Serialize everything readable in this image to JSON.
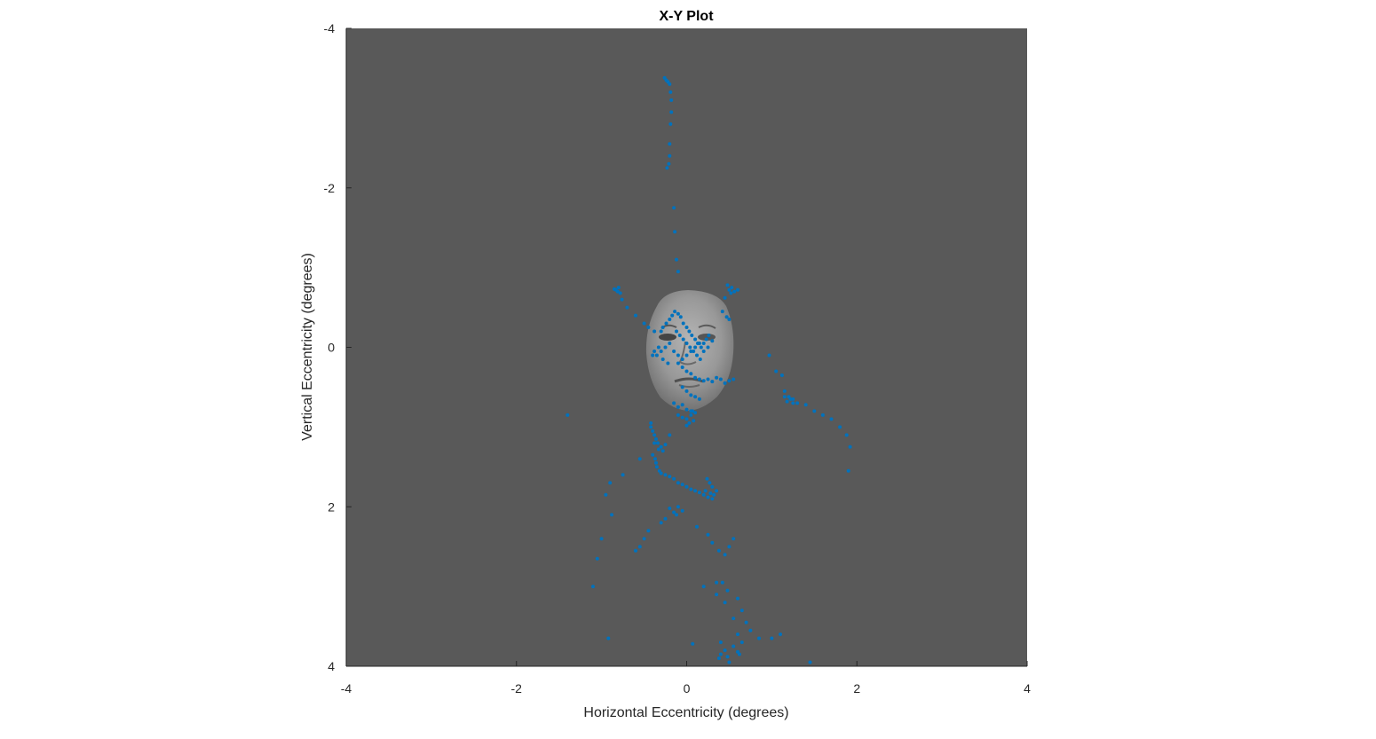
{
  "chart_data": {
    "type": "scatter",
    "title": "X-Y Plot",
    "xlabel": "Horizontal Eccentricity (degrees)",
    "ylabel": "Vertical Eccentricity (degrees)",
    "xlim": [
      -4,
      4
    ],
    "ylim": [
      -4,
      4
    ],
    "y_axis_reversed": true,
    "xticks": [
      -4,
      -2,
      0,
      2,
      4
    ],
    "yticks": [
      -4,
      -2,
      0,
      2,
      4
    ],
    "xtick_labels": [
      "-4",
      "-2",
      "0",
      "2",
      "4"
    ],
    "ytick_labels": [
      "-4",
      "-2",
      "0",
      "2",
      "4"
    ],
    "grid": false,
    "background_color": "#595959",
    "marker_color": "#0072BD",
    "background_image": "face-image",
    "series": [
      {
        "x": [
          -0.26,
          -0.24,
          -0.22,
          -0.2,
          -0.19,
          -0.18,
          -0.18,
          -0.19,
          -0.2,
          -0.2,
          -0.21,
          -0.23,
          -0.15,
          -0.14,
          -0.12,
          -0.1,
          -0.83,
          -0.8,
          -0.78,
          -0.81,
          -0.85,
          -0.76,
          0.48,
          0.5,
          0.53,
          0.56,
          0.52,
          0.6,
          0.45,
          -0.7,
          -0.6,
          -0.5,
          -0.45,
          -0.38,
          0.42,
          0.47,
          0.5,
          -0.3,
          -0.28,
          -0.24,
          -0.2,
          -0.17,
          -0.14,
          -0.1,
          -0.07,
          -0.04,
          0.0,
          0.03,
          0.06,
          0.1,
          0.13,
          0.17,
          0.2,
          0.23,
          0.26,
          -0.35,
          -0.3,
          -0.25,
          -0.2,
          -0.15,
          -0.1,
          -0.05,
          0.0,
          0.05,
          0.1,
          0.15,
          0.2,
          0.25,
          0.3,
          -0.12,
          -0.08,
          -0.04,
          0.0,
          0.04,
          0.08,
          0.12,
          0.16,
          -0.28,
          -0.22,
          -0.33,
          -0.38,
          -0.4,
          -0.1,
          -0.05,
          0.0,
          0.05,
          0.1,
          0.15,
          0.2,
          0.25,
          0.3,
          0.35,
          0.4,
          0.45,
          0.5,
          0.55,
          -0.05,
          0.0,
          0.05,
          0.1,
          0.15,
          -0.15,
          -0.1,
          -0.05,
          0.0,
          0.05,
          0.1,
          -0.1,
          -0.05,
          0.0,
          0.05,
          0.07,
          0.08,
          0.03,
          0.0,
          -0.42,
          -0.4,
          -0.38,
          -0.36,
          -0.34,
          -0.3,
          -0.28,
          -0.4,
          -0.37,
          -0.33,
          -0.25,
          -0.2,
          -0.42,
          -0.38,
          -0.36,
          -0.35,
          -0.32,
          -0.3,
          -0.25,
          -0.2,
          -0.15,
          -0.1,
          -0.05,
          0.0,
          0.05,
          0.1,
          0.15,
          0.2,
          0.22,
          0.25,
          0.28,
          0.3,
          0.32,
          0.35,
          0.3,
          0.27,
          0.24,
          -0.1,
          -0.05,
          -0.12,
          -0.2,
          -0.15,
          -0.25,
          -0.3,
          -0.45,
          -0.5,
          -0.55,
          -0.6,
          -1.4,
          -0.75,
          -0.9,
          -0.95,
          -0.88,
          -1.0,
          -1.05,
          -1.1,
          -0.92,
          -0.55,
          0.12,
          0.25,
          0.3,
          0.38,
          0.45,
          0.5,
          0.55,
          0.42,
          0.48,
          0.6,
          0.65,
          0.7,
          0.75,
          0.85,
          0.55,
          0.6,
          0.38,
          0.4,
          0.45,
          0.48,
          0.2,
          0.35,
          0.45,
          0.55,
          0.6,
          0.65,
          0.62,
          0.5,
          0.4,
          1.0,
          1.1,
          1.45,
          0.07,
          0.35,
          0.97,
          1.05,
          1.12,
          1.15,
          1.2,
          1.25,
          1.3,
          1.4,
          1.5,
          1.6,
          1.7,
          1.8,
          1.88,
          1.92,
          1.9,
          1.22,
          1.25,
          1.15,
          1.18
        ],
        "y": [
          -3.38,
          -3.35,
          -3.33,
          -3.3,
          -3.2,
          -3.1,
          -2.95,
          -2.8,
          -2.55,
          -2.4,
          -2.3,
          -2.25,
          -1.75,
          -1.45,
          -1.1,
          -0.95,
          -0.72,
          -0.75,
          -0.68,
          -0.7,
          -0.73,
          -0.6,
          -0.78,
          -0.72,
          -0.75,
          -0.7,
          -0.68,
          -0.72,
          -0.62,
          -0.5,
          -0.4,
          -0.3,
          -0.25,
          -0.2,
          -0.45,
          -0.38,
          -0.35,
          -0.2,
          -0.25,
          -0.3,
          -0.35,
          -0.4,
          -0.45,
          -0.42,
          -0.38,
          -0.3,
          -0.25,
          -0.2,
          -0.15,
          -0.1,
          -0.05,
          0.0,
          -0.05,
          -0.1,
          -0.15,
          0.1,
          0.05,
          0.0,
          -0.05,
          0.05,
          0.1,
          0.15,
          0.1,
          0.05,
          0.0,
          -0.05,
          0.05,
          0.0,
          -0.08,
          -0.2,
          -0.15,
          -0.1,
          -0.05,
          0.0,
          0.05,
          0.1,
          0.15,
          0.15,
          0.2,
          0.0,
          0.05,
          0.1,
          0.2,
          0.25,
          0.3,
          0.33,
          0.38,
          0.4,
          0.42,
          0.4,
          0.43,
          0.38,
          0.4,
          0.45,
          0.42,
          0.4,
          0.5,
          0.55,
          0.6,
          0.62,
          0.65,
          0.7,
          0.75,
          0.72,
          0.78,
          0.8,
          0.82,
          0.85,
          0.88,
          0.9,
          0.85,
          0.8,
          0.92,
          0.95,
          0.98,
          1.0,
          1.05,
          1.1,
          1.15,
          1.2,
          1.25,
          1.3,
          1.35,
          1.4,
          1.28,
          1.22,
          1.1,
          0.95,
          1.2,
          1.45,
          1.5,
          1.55,
          1.58,
          1.6,
          1.62,
          1.65,
          1.7,
          1.72,
          1.75,
          1.78,
          1.8,
          1.82,
          1.85,
          1.8,
          1.88,
          1.83,
          1.9,
          1.85,
          1.8,
          1.75,
          1.7,
          1.65,
          2.0,
          2.05,
          2.1,
          2.02,
          2.07,
          2.15,
          2.2,
          2.3,
          2.4,
          2.5,
          2.55,
          0.85,
          1.6,
          1.7,
          1.85,
          2.1,
          2.4,
          2.65,
          3.0,
          3.65,
          1.4,
          2.25,
          2.35,
          2.45,
          2.55,
          2.6,
          2.5,
          2.4,
          2.95,
          3.05,
          3.15,
          3.3,
          3.45,
          3.55,
          3.65,
          3.75,
          3.82,
          3.9,
          3.85,
          3.8,
          3.88,
          3.0,
          3.1,
          3.2,
          3.4,
          3.6,
          3.7,
          3.85,
          3.95,
          3.7,
          3.65,
          3.6,
          3.95,
          3.72,
          2.95,
          0.1,
          0.3,
          0.35,
          0.55,
          0.62,
          0.65,
          0.7,
          0.72,
          0.8,
          0.85,
          0.9,
          1.0,
          1.1,
          1.25,
          1.55,
          0.65,
          0.7,
          0.62,
          0.68
        ]
      }
    ]
  }
}
